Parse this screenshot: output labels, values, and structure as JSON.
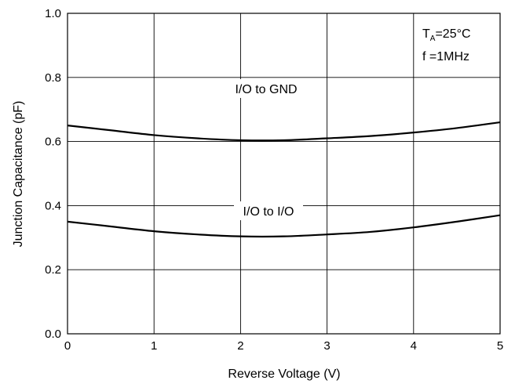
{
  "chart_data": {
    "type": "line",
    "title": "",
    "xlabel": "Reverse Voltage (V)",
    "ylabel": "Junction Capacitance (pF)",
    "xlim": [
      0,
      5
    ],
    "ylim": [
      0.0,
      1.0
    ],
    "x_ticks": [
      "0",
      "1",
      "2",
      "3",
      "4",
      "5"
    ],
    "y_ticks": [
      "0.0",
      "0.2",
      "0.4",
      "0.6",
      "0.8",
      "1.0"
    ],
    "grid": true,
    "series": [
      {
        "name": "I/O to GND",
        "x": [
          0,
          0.5,
          1,
          1.5,
          2,
          2.5,
          3,
          3.5,
          4,
          4.5,
          5
        ],
        "y": [
          0.65,
          0.635,
          0.62,
          0.61,
          0.604,
          0.604,
          0.61,
          0.617,
          0.628,
          0.642,
          0.66
        ]
      },
      {
        "name": "I/O to I/O",
        "x": [
          0,
          0.5,
          1,
          1.5,
          2,
          2.5,
          3,
          3.5,
          4,
          4.5,
          5
        ],
        "y": [
          0.35,
          0.335,
          0.32,
          0.31,
          0.304,
          0.304,
          0.31,
          0.318,
          0.332,
          0.35,
          0.37
        ]
      }
    ],
    "annotations": {
      "io_gnd": "I/O to GND",
      "io_io": "I/O to I/O"
    },
    "conditions": {
      "ta_main": "T",
      "ta_sub": "A",
      "ta_value": "=25°C",
      "freq": "f =1MHz"
    }
  }
}
